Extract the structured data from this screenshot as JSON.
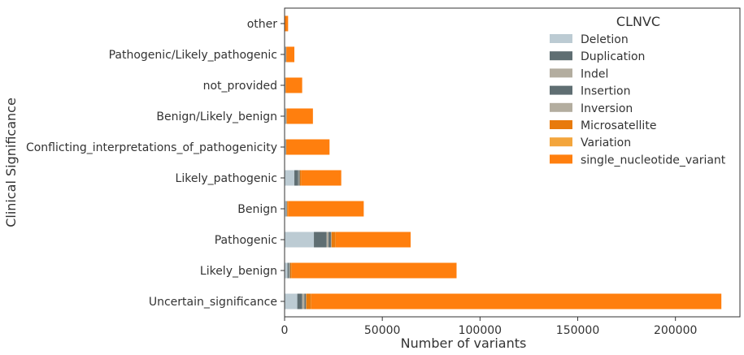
{
  "chart_data": {
    "type": "bar",
    "orientation": "horizontal",
    "stacked": true,
    "title": "",
    "xlabel": "Number of variants",
    "ylabel": "Clinical Significance",
    "xlim": [
      0,
      233000
    ],
    "xticks": [
      0,
      50000,
      100000,
      150000,
      200000
    ],
    "xtick_labels": [
      "0",
      "50000",
      "100000",
      "150000",
      "200000"
    ],
    "grid": false,
    "legend_title": "CLNVC",
    "legend_position": "top-right",
    "categories": [
      "Uncertain_significance",
      "Likely_benign",
      "Pathogenic",
      "Benign",
      "Likely_pathogenic",
      "Conflicting_interpretations_of_pathogenicity",
      "Benign/Likely_benign",
      "not_provided",
      "Pathogenic/Likely_pathogenic",
      "other"
    ],
    "series": [
      {
        "name": "Deletion",
        "color": "#bccbd3",
        "values": [
          6500,
          1500,
          15000,
          700,
          5000,
          500,
          600,
          300,
          400,
          100
        ]
      },
      {
        "name": "Duplication",
        "color": "#5f6e72",
        "values": [
          2500,
          600,
          6500,
          300,
          2000,
          150,
          200,
          100,
          200,
          30
        ]
      },
      {
        "name": "Indel",
        "color": "#b3ad9f",
        "values": [
          1200,
          300,
          1000,
          150,
          300,
          80,
          100,
          50,
          100,
          20
        ]
      },
      {
        "name": "Insertion",
        "color": "#5f6e72",
        "values": [
          700,
          400,
          1200,
          150,
          500,
          70,
          80,
          50,
          100,
          20
        ]
      },
      {
        "name": "Inversion",
        "color": "#b3ad9f",
        "values": [
          150,
          50,
          300,
          30,
          50,
          10,
          10,
          10,
          20,
          5
        ]
      },
      {
        "name": "Microsatellite",
        "color": "#e87a0c",
        "values": [
          2500,
          800,
          2000,
          400,
          700,
          200,
          200,
          150,
          100,
          40
        ]
      },
      {
        "name": "Variation",
        "color": "#f3a53c",
        "values": [
          100,
          50,
          100,
          20,
          50,
          20,
          20,
          10,
          10,
          5
        ]
      },
      {
        "name": "single_nucleotide_variant",
        "color": "#ff7f0e",
        "values": [
          209850,
          84300,
          38400,
          38750,
          20400,
          21970,
          13290,
          8330,
          4070,
          1580
        ]
      }
    ]
  }
}
